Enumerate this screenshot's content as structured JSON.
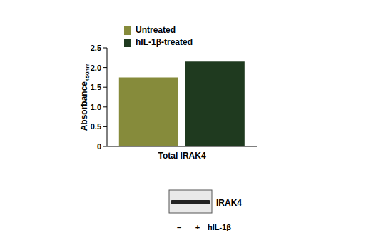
{
  "chart_data": {
    "type": "bar",
    "ylabel": "Absorbance",
    "ylabel_subscript": "450nm",
    "categories": [
      "Total IRAK4"
    ],
    "series": [
      {
        "name": "Untreated",
        "color": "#868b3b",
        "values": [
          1.75
        ]
      },
      {
        "name": "hIL-1β-treated",
        "color": "#1f3a1f",
        "values": [
          2.15
        ]
      }
    ],
    "ylim": [
      0,
      2.5
    ],
    "yticks": [
      0,
      0.5,
      {
        "value": 1,
        "label": "1.0"
      },
      1.5,
      {
        "value": 2,
        "label": "2.0"
      },
      2.5
    ],
    "grid": false,
    "legend": "upper left",
    "annotations": {
      "blot_label": "IRAK4",
      "lanes": [
        "–",
        "+"
      ],
      "treatment": "hIL-1β"
    }
  }
}
